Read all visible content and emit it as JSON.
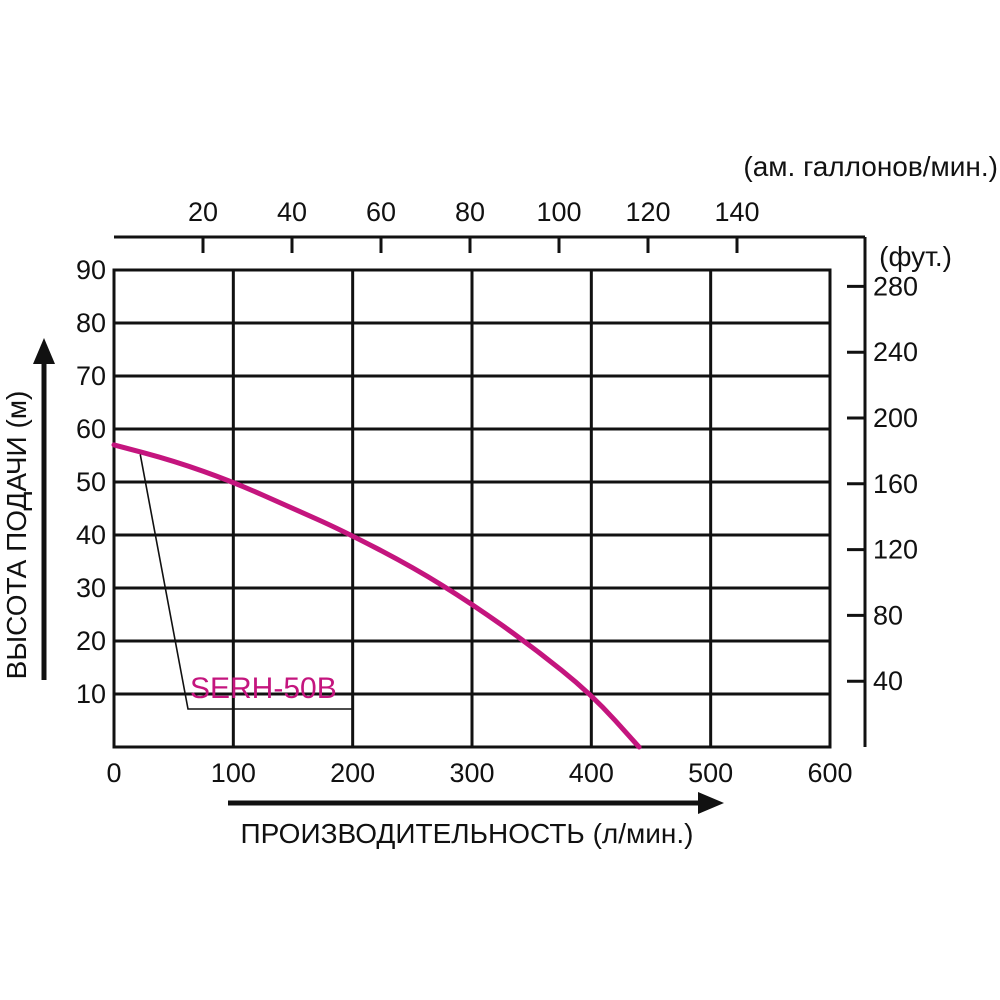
{
  "chart_data": {
    "type": "line",
    "xlabel": "ПРОИЗВОДИТЕЛЬНОСТЬ (л/мин.)",
    "ylabel": "ВЫСОТА ПОДАЧИ (м)",
    "top_axis_unit": "(ам. галлонов/мин.)",
    "right_axis_unit": "(фут.)",
    "xlim": [
      0,
      600
    ],
    "ylim": [
      0,
      90
    ],
    "grid": true,
    "x_ticks": [
      0,
      100,
      200,
      300,
      400,
      500,
      600
    ],
    "y_ticks": [
      10,
      20,
      30,
      40,
      50,
      60,
      70,
      80,
      90
    ],
    "top_ticks": [
      20,
      40,
      60,
      80,
      100,
      120,
      140
    ],
    "right_ticks": [
      40,
      80,
      120,
      160,
      200,
      240,
      280
    ],
    "series": [
      {
        "name": "SERH-50B",
        "color": "#c4157e",
        "x": [
          0,
          50,
          100,
          150,
          190,
          250,
          300,
          350,
          400,
          440
        ],
        "y": [
          57,
          54,
          50,
          45,
          41,
          34,
          27,
          19,
          10,
          0
        ]
      }
    ]
  }
}
